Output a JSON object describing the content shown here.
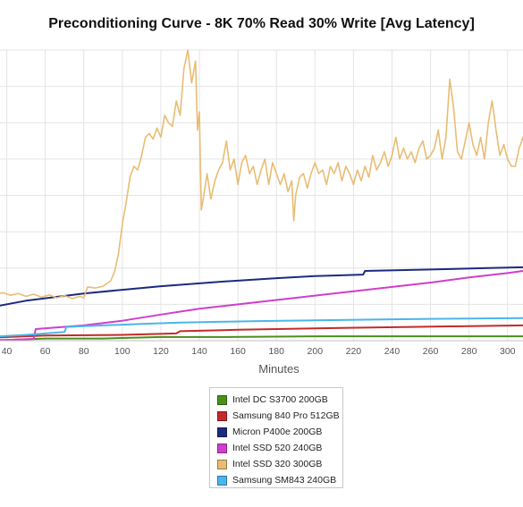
{
  "chart_data": {
    "type": "line",
    "title": "Preconditioning Curve - 8K 70% Read 30% Write [Avg Latency]",
    "xlabel": "Minutes",
    "ylabel": "",
    "xlim": [
      30,
      308
    ],
    "ylim": [
      0,
      8
    ],
    "xticks": [
      40,
      60,
      80,
      100,
      120,
      140,
      160,
      180,
      200,
      220,
      240,
      260,
      280,
      300
    ],
    "grid": true,
    "legend_position": "bottom-center",
    "series": [
      {
        "name": "Intel DC S3700 200GB",
        "color": "#4a8f1a",
        "points": [
          [
            30,
            0.02
          ],
          [
            40,
            0.02
          ],
          [
            60,
            0.06
          ],
          [
            90,
            0.06
          ],
          [
            120,
            0.1
          ],
          [
            150,
            0.1
          ],
          [
            200,
            0.12
          ],
          [
            250,
            0.12
          ],
          [
            308,
            0.12
          ]
        ]
      },
      {
        "name": "Samsung 840 Pro 512GB",
        "color": "#c42a2a",
        "points": [
          [
            30,
            0.08
          ],
          [
            60,
            0.14
          ],
          [
            100,
            0.16
          ],
          [
            128,
            0.2
          ],
          [
            130,
            0.26
          ],
          [
            160,
            0.3
          ],
          [
            200,
            0.34
          ],
          [
            250,
            0.38
          ],
          [
            308,
            0.42
          ]
        ]
      },
      {
        "name": "Micron P400e 200GB",
        "color": "#1c2a80",
        "points": [
          [
            30,
            0.9
          ],
          [
            50,
            1.1
          ],
          [
            80,
            1.3
          ],
          [
            100,
            1.4
          ],
          [
            120,
            1.5
          ],
          [
            150,
            1.62
          ],
          [
            180,
            1.72
          ],
          [
            200,
            1.78
          ],
          [
            225,
            1.82
          ],
          [
            226,
            1.92
          ],
          [
            260,
            1.96
          ],
          [
            290,
            2.0
          ],
          [
            308,
            2.02
          ]
        ]
      },
      {
        "name": "Intel SSD 520 240GB",
        "color": "#d03ecb",
        "points": [
          [
            30,
            0.0
          ],
          [
            54,
            0.05
          ],
          [
            55,
            0.32
          ],
          [
            80,
            0.42
          ],
          [
            100,
            0.55
          ],
          [
            120,
            0.72
          ],
          [
            140,
            0.88
          ],
          [
            160,
            1.0
          ],
          [
            180,
            1.12
          ],
          [
            200,
            1.24
          ],
          [
            220,
            1.36
          ],
          [
            240,
            1.48
          ],
          [
            260,
            1.6
          ],
          [
            280,
            1.74
          ],
          [
            300,
            1.86
          ],
          [
            308,
            1.92
          ]
        ]
      },
      {
        "name": "Intel SSD 320 300GB",
        "color": "#e8bd73",
        "points": [
          [
            30,
            1.35
          ],
          [
            34,
            1.28
          ],
          [
            38,
            1.32
          ],
          [
            42,
            1.25
          ],
          [
            46,
            1.3
          ],
          [
            50,
            1.22
          ],
          [
            54,
            1.28
          ],
          [
            58,
            1.2
          ],
          [
            62,
            1.26
          ],
          [
            66,
            1.18
          ],
          [
            70,
            1.24
          ],
          [
            74,
            1.16
          ],
          [
            78,
            1.22
          ],
          [
            80,
            1.18
          ],
          [
            82,
            1.48
          ],
          [
            86,
            1.45
          ],
          [
            90,
            1.5
          ],
          [
            94,
            1.65
          ],
          [
            96,
            1.9
          ],
          [
            98,
            2.4
          ],
          [
            100,
            3.2
          ],
          [
            102,
            3.8
          ],
          [
            104,
            4.5
          ],
          [
            106,
            4.8
          ],
          [
            108,
            4.7
          ],
          [
            110,
            5.1
          ],
          [
            112,
            5.6
          ],
          [
            114,
            5.7
          ],
          [
            116,
            5.55
          ],
          [
            118,
            5.85
          ],
          [
            120,
            5.6
          ],
          [
            122,
            6.2
          ],
          [
            124,
            6.0
          ],
          [
            126,
            5.9
          ],
          [
            128,
            6.6
          ],
          [
            130,
            6.2
          ],
          [
            132,
            7.5
          ],
          [
            134,
            8.0
          ],
          [
            136,
            7.1
          ],
          [
            138,
            7.7
          ],
          [
            139,
            5.8
          ],
          [
            140,
            6.3
          ],
          [
            141,
            3.6
          ],
          [
            142,
            3.9
          ],
          [
            144,
            4.6
          ],
          [
            146,
            3.9
          ],
          [
            148,
            4.4
          ],
          [
            150,
            4.7
          ],
          [
            152,
            4.9
          ],
          [
            154,
            5.5
          ],
          [
            156,
            4.7
          ],
          [
            158,
            5.0
          ],
          [
            160,
            4.3
          ],
          [
            162,
            4.9
          ],
          [
            164,
            5.1
          ],
          [
            166,
            4.6
          ],
          [
            168,
            4.8
          ],
          [
            170,
            4.3
          ],
          [
            172,
            4.7
          ],
          [
            174,
            5.0
          ],
          [
            176,
            4.3
          ],
          [
            178,
            4.9
          ],
          [
            180,
            4.6
          ],
          [
            182,
            4.3
          ],
          [
            184,
            4.6
          ],
          [
            186,
            4.1
          ],
          [
            188,
            4.4
          ],
          [
            189,
            3.3
          ],
          [
            190,
            4.0
          ],
          [
            192,
            4.5
          ],
          [
            194,
            4.6
          ],
          [
            196,
            4.2
          ],
          [
            198,
            4.6
          ],
          [
            200,
            4.9
          ],
          [
            202,
            4.6
          ],
          [
            204,
            4.7
          ],
          [
            206,
            4.3
          ],
          [
            208,
            4.8
          ],
          [
            210,
            4.6
          ],
          [
            212,
            4.9
          ],
          [
            214,
            4.4
          ],
          [
            216,
            4.8
          ],
          [
            218,
            4.6
          ],
          [
            220,
            4.3
          ],
          [
            222,
            4.7
          ],
          [
            224,
            4.4
          ],
          [
            226,
            4.8
          ],
          [
            228,
            4.5
          ],
          [
            230,
            5.1
          ],
          [
            232,
            4.7
          ],
          [
            234,
            4.9
          ],
          [
            236,
            5.2
          ],
          [
            238,
            4.8
          ],
          [
            240,
            5.1
          ],
          [
            242,
            5.6
          ],
          [
            244,
            5.0
          ],
          [
            246,
            5.3
          ],
          [
            248,
            5.0
          ],
          [
            250,
            5.2
          ],
          [
            252,
            4.9
          ],
          [
            254,
            5.3
          ],
          [
            256,
            5.5
          ],
          [
            258,
            5.0
          ],
          [
            260,
            5.1
          ],
          [
            262,
            5.3
          ],
          [
            264,
            5.8
          ],
          [
            266,
            5.0
          ],
          [
            268,
            5.6
          ],
          [
            270,
            7.2
          ],
          [
            272,
            6.4
          ],
          [
            274,
            5.2
          ],
          [
            276,
            5.0
          ],
          [
            278,
            5.5
          ],
          [
            280,
            6.0
          ],
          [
            282,
            5.4
          ],
          [
            284,
            5.1
          ],
          [
            286,
            5.6
          ],
          [
            288,
            5.0
          ],
          [
            290,
            6.0
          ],
          [
            292,
            6.6
          ],
          [
            294,
            5.8
          ],
          [
            296,
            5.1
          ],
          [
            298,
            5.4
          ],
          [
            300,
            5.0
          ],
          [
            302,
            4.8
          ],
          [
            304,
            4.8
          ],
          [
            306,
            5.3
          ],
          [
            308,
            5.6
          ]
        ]
      },
      {
        "name": "Samsung SM843 240GB",
        "color": "#4ab6ea",
        "points": [
          [
            30,
            0.1
          ],
          [
            50,
            0.16
          ],
          [
            70,
            0.24
          ],
          [
            71,
            0.38
          ],
          [
            90,
            0.42
          ],
          [
            110,
            0.46
          ],
          [
            130,
            0.5
          ],
          [
            150,
            0.52
          ],
          [
            170,
            0.54
          ],
          [
            200,
            0.56
          ],
          [
            230,
            0.58
          ],
          [
            260,
            0.6
          ],
          [
            308,
            0.62
          ]
        ]
      }
    ]
  }
}
